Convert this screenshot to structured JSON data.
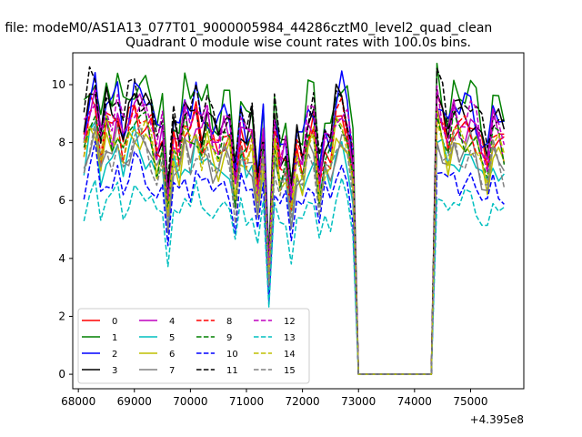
{
  "suptitle": "n file: modeM0/AS1A13_077T01_9000005984_44286cztM0_level2_quad_clean",
  "chart_data": {
    "type": "line",
    "title": "Quadrant 0 module wise count rates with 100.0s bins.",
    "xlabel": "",
    "ylabel": "",
    "x_offset_label": "+4.395e8",
    "xlim": [
      67900,
      75950
    ],
    "ylim": [
      -0.5,
      11.1
    ],
    "xticks": [
      68000,
      69000,
      70000,
      71000,
      72000,
      73000,
      74000,
      75000
    ],
    "xtick_labels": [
      "68000",
      "69000",
      "70000",
      "71000",
      "72000",
      "73000",
      "74000",
      "75000"
    ],
    "yticks": [
      0,
      2,
      4,
      6,
      8,
      10
    ],
    "ytick_labels": [
      "0",
      "2",
      "4",
      "6",
      "8",
      "10"
    ],
    "grid": false,
    "legend_placement": "lower-left",
    "legend_columns": 4,
    "x": [
      68100,
      68200,
      68300,
      68400,
      68500,
      68600,
      68700,
      68800,
      68900,
      69000,
      69100,
      69200,
      69300,
      69400,
      69500,
      69600,
      69700,
      69800,
      69900,
      70000,
      70100,
      70200,
      70300,
      70400,
      70500,
      70600,
      70700,
      70800,
      70900,
      71000,
      71100,
      71200,
      71300,
      71400,
      71500,
      71600,
      71700,
      71800,
      71900,
      72000,
      72100,
      72200,
      72300,
      72400,
      72500,
      72600,
      72700,
      72800,
      72900,
      73000,
      73100,
      73200,
      73300,
      73400,
      73500,
      73600,
      73700,
      73800,
      73900,
      74000,
      74100,
      74200,
      74300,
      74400,
      74500,
      74600,
      74700,
      74800,
      74900,
      75000,
      75100,
      75200,
      75300,
      75400,
      75500,
      75600
    ],
    "base": [
      1.0,
      1.13,
      1.18,
      0.98,
      1.1,
      1.05,
      1.12,
      1.0,
      1.08,
      1.15,
      1.12,
      1.1,
      1.06,
      0.95,
      1.02,
      0.72,
      1.02,
      0.96,
      1.1,
      1.03,
      1.12,
      1.02,
      1.08,
      1.0,
      0.98,
      1.05,
      1.03,
      0.8,
      1.05,
      0.98,
      1.03,
      0.78,
      1.02,
      0.42,
      1.05,
      0.9,
      0.95,
      0.74,
      0.96,
      0.9,
      1.05,
      1.07,
      0.82,
      0.98,
      0.95,
      1.1,
      1.13,
      1.05,
      0.88,
      0,
      0,
      0,
      0,
      0,
      0,
      0,
      0,
      0,
      0,
      0,
      0,
      0,
      0,
      1.15,
      1.08,
      1.0,
      1.1,
      1.05,
      1.06,
      1.08,
      1.04,
      0.96,
      0.9,
      1.06,
      1.03,
      0.98
    ],
    "series": [
      {
        "name": "0",
        "level": 8.0,
        "color": "#ff0000",
        "dash": "solid"
      },
      {
        "name": "1",
        "level": 9.0,
        "color": "#008000",
        "dash": "solid"
      },
      {
        "name": "2",
        "level": 8.6,
        "color": "#0000ff",
        "dash": "solid"
      },
      {
        "name": "3",
        "level": 8.4,
        "color": "#000000",
        "dash": "solid"
      },
      {
        "name": "4",
        "level": 8.1,
        "color": "#bf00bf",
        "dash": "solid"
      },
      {
        "name": "5",
        "level": 7.0,
        "color": "#00bfbf",
        "dash": "solid"
      },
      {
        "name": "6",
        "level": 7.4,
        "color": "#bfbf00",
        "dash": "solid"
      },
      {
        "name": "7",
        "level": 7.2,
        "color": "#808080",
        "dash": "solid"
      },
      {
        "name": "8",
        "level": 7.9,
        "color": "#ff0000",
        "dash": "dashed"
      },
      {
        "name": "9",
        "level": 7.7,
        "color": "#008000",
        "dash": "dashed"
      },
      {
        "name": "10",
        "level": 6.3,
        "color": "#0000ff",
        "dash": "dashed"
      },
      {
        "name": "11",
        "level": 8.7,
        "color": "#000000",
        "dash": "dashed"
      },
      {
        "name": "12",
        "level": 8.3,
        "color": "#bf00bf",
        "dash": "dashed"
      },
      {
        "name": "13",
        "level": 5.6,
        "color": "#00bfbf",
        "dash": "dashed"
      },
      {
        "name": "14",
        "level": 7.5,
        "color": "#bfbf00",
        "dash": "dashed"
      },
      {
        "name": "15",
        "level": 7.1,
        "color": "#808080",
        "dash": "dashed"
      }
    ]
  }
}
